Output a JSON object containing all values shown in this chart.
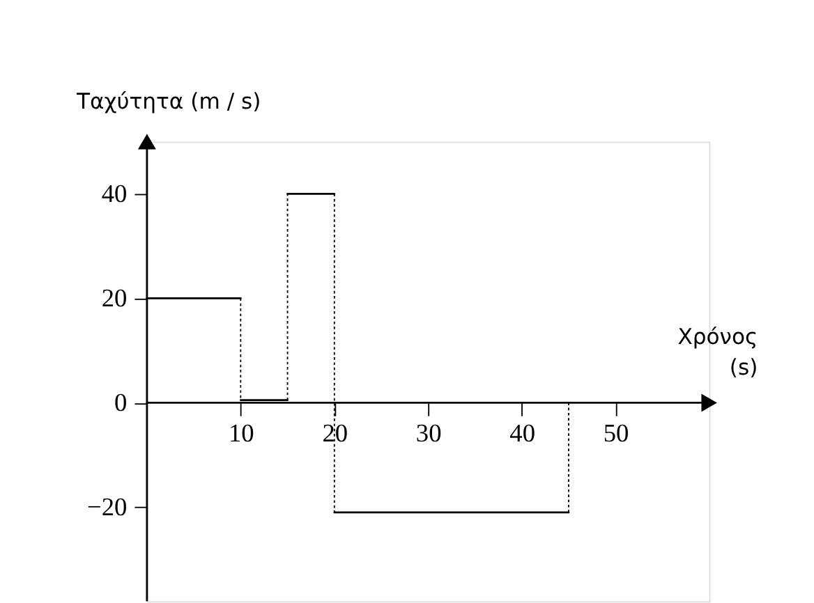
{
  "chart_data": {
    "type": "step",
    "xlabel": "Χρόνος (s)",
    "ylabel": "Ταχύτητα (m / s)",
    "x": [
      0,
      10,
      15,
      20,
      45
    ],
    "series": [
      {
        "color": "#000000",
        "values": [
          20,
          0.5,
          40,
          -21,
          0
        ]
      }
    ],
    "xlim": [
      0,
      60
    ],
    "ylim": [
      -38,
      50
    ],
    "xticks": [
      10,
      20,
      30,
      40,
      50
    ],
    "yticks": [
      -20,
      0,
      20,
      40
    ],
    "grid": false,
    "line_style": "solid"
  }
}
